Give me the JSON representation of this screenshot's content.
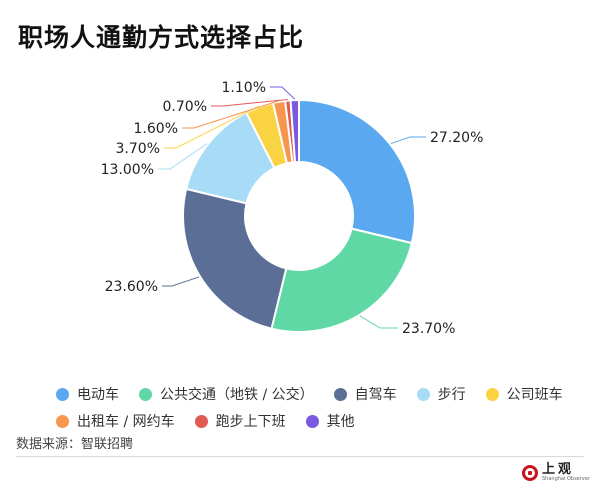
{
  "title": "职场人通勤方式选择占比",
  "source": "数据来源：智联招聘",
  "logo": {
    "cn": "上观",
    "en": "Shanghai Observer",
    "color": "#c8141e"
  },
  "chart_data": {
    "type": "pie",
    "donut": true,
    "title": "职场人通勤方式选择占比",
    "legend_position": "bottom",
    "slices": [
      {
        "label": "电动车",
        "value": 27.2,
        "display": "27.20%",
        "color": "#5aa9f0"
      },
      {
        "label": "公共交通（地铁 / 公交）",
        "value": 23.7,
        "display": "23.70%",
        "color": "#5fd8a6"
      },
      {
        "label": "自驾车",
        "value": 23.6,
        "display": "23.60%",
        "color": "#5b6e96"
      },
      {
        "label": "步行",
        "value": 13.0,
        "display": "13.00%",
        "color": "#a8dcf6"
      },
      {
        "label": "公司班车",
        "value": 3.7,
        "display": "3.70%",
        "color": "#fad343"
      },
      {
        "label": "出租车 / 网约车",
        "value": 1.6,
        "display": "1.60%",
        "color": "#f7964f"
      },
      {
        "label": "跑步上下班",
        "value": 0.7,
        "display": "0.70%",
        "color": "#e05a52"
      },
      {
        "label": "其他",
        "value": 1.1,
        "display": "1.10%",
        "color": "#7a5ae0"
      }
    ]
  }
}
